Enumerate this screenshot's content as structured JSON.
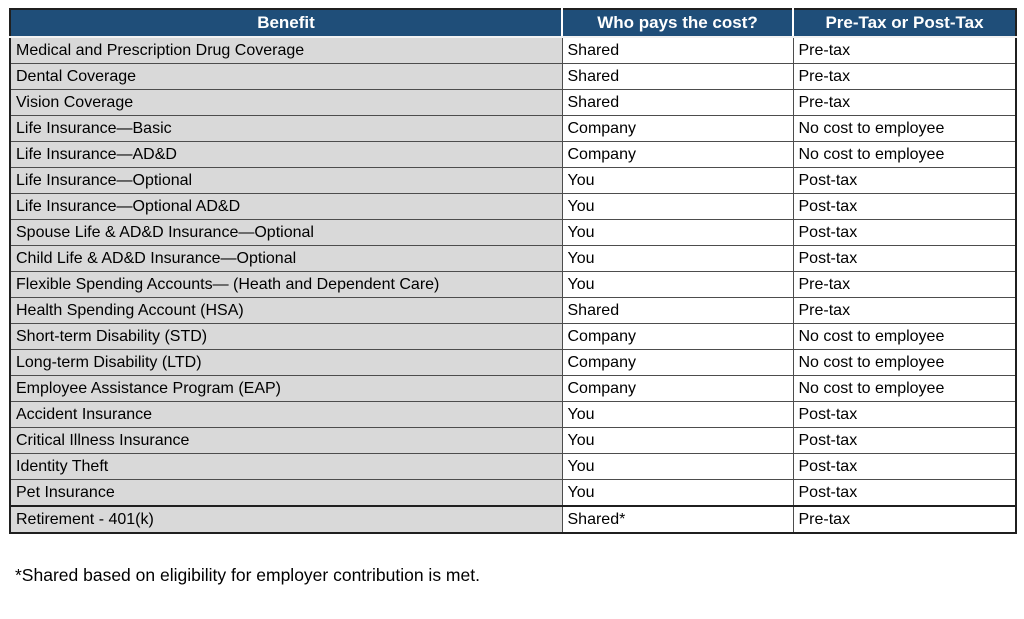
{
  "table": {
    "columns": [
      {
        "label": "Benefit"
      },
      {
        "label": "Who pays the cost?"
      },
      {
        "label": "Pre-Tax or Post-Tax"
      }
    ],
    "rows": [
      {
        "benefit": "Medical and Prescription Drug Coverage",
        "who_pays": "Shared",
        "tax": "Pre-tax"
      },
      {
        "benefit": "Dental Coverage",
        "who_pays": "Shared",
        "tax": "Pre-tax"
      },
      {
        "benefit": "Vision Coverage",
        "who_pays": "Shared",
        "tax": "Pre-tax"
      },
      {
        "benefit": "Life Insurance—Basic",
        "who_pays": "Company",
        "tax": "No cost to employee"
      },
      {
        "benefit": "Life Insurance—AD&D",
        "who_pays": "Company",
        "tax": "No cost to employee"
      },
      {
        "benefit": "Life Insurance—Optional",
        "who_pays": "You",
        "tax": "Post-tax"
      },
      {
        "benefit": "Life Insurance—Optional AD&D",
        "who_pays": "You",
        "tax": "Post-tax"
      },
      {
        "benefit": "Spouse Life & AD&D Insurance—Optional",
        "who_pays": "You",
        "tax": "Post-tax"
      },
      {
        "benefit": "Child Life & AD&D Insurance—Optional",
        "who_pays": "You",
        "tax": "Post-tax"
      },
      {
        "benefit": "Flexible Spending Accounts— (Heath and Dependent Care)",
        "who_pays": "You",
        "tax": "Pre-tax"
      },
      {
        "benefit": "Health Spending Account (HSA)",
        "who_pays": "Shared",
        "tax": "Pre-tax"
      },
      {
        "benefit": "Short-term Disability (STD)",
        "who_pays": "Company",
        "tax": "No cost to employee"
      },
      {
        "benefit": "Long-term Disability (LTD)",
        "who_pays": "Company",
        "tax": "No cost to employee"
      },
      {
        "benefit": "Employee Assistance Program (EAP)",
        "who_pays": "Company",
        "tax": "No cost to employee"
      },
      {
        "benefit": "Accident Insurance",
        "who_pays": "You",
        "tax": "Post-tax"
      },
      {
        "benefit": "Critical Illness Insurance",
        "who_pays": "You",
        "tax": "Post-tax"
      },
      {
        "benefit": "Identity Theft",
        "who_pays": "You",
        "tax": "Post-tax"
      },
      {
        "benefit": "Pet Insurance",
        "who_pays": "You",
        "tax": "Post-tax"
      },
      {
        "benefit": "Retirement - 401(k)",
        "who_pays": "Shared*",
        "tax": "Pre-tax"
      }
    ]
  },
  "footnote": "*Shared based on eligibility for employer contribution is met.",
  "colors": {
    "header_bg": "#1F4E79",
    "header_text": "#FFFFFF",
    "benefit_column_bg": "#D9D9D9",
    "body_bg": "#FFFFFF",
    "inner_border": "#4D4D4D",
    "outer_border": "#1F1F1F"
  }
}
